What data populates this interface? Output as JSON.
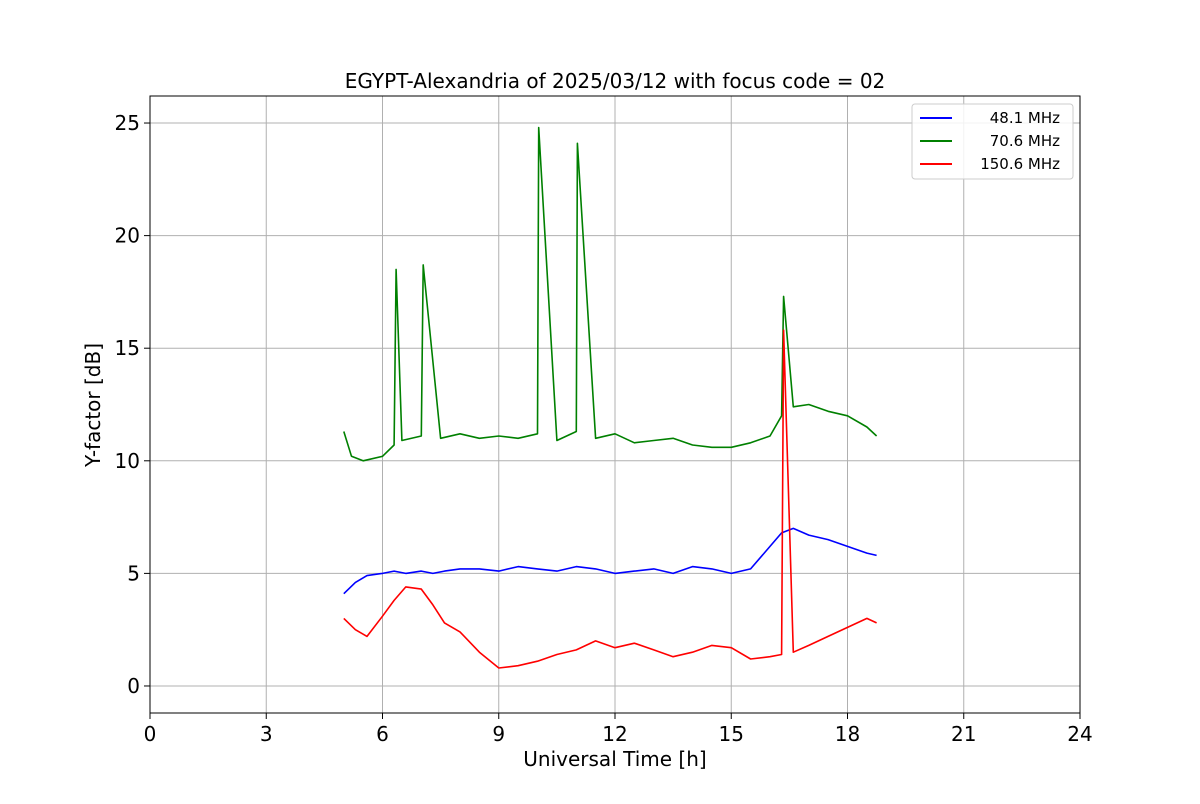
{
  "chart_data": {
    "type": "line",
    "title": "EGYPT-Alexandria of 2025/03/12 with focus code = 02",
    "xlabel": "Universal Time [h]",
    "ylabel": "Y-factor [dB]",
    "xlim": [
      0,
      24
    ],
    "ylim": [
      -1.2,
      26.2
    ],
    "xticks": [
      0,
      3,
      6,
      9,
      12,
      15,
      18,
      21,
      24
    ],
    "yticks": [
      0,
      5,
      10,
      15,
      20,
      25
    ],
    "grid": true,
    "legend_position": "top-right",
    "series": [
      {
        "name": "48.1 MHz",
        "color": "#0000ff",
        "x": [
          5.0,
          5.3,
          5.6,
          6.0,
          6.3,
          6.6,
          7.0,
          7.3,
          7.6,
          8.0,
          8.5,
          9.0,
          9.5,
          10.0,
          10.5,
          11.0,
          11.5,
          12.0,
          12.5,
          13.0,
          13.5,
          14.0,
          14.5,
          15.0,
          15.5,
          16.0,
          16.3,
          16.6,
          17.0,
          17.5,
          18.0,
          18.5,
          18.75
        ],
        "y": [
          4.1,
          4.6,
          4.9,
          5.0,
          5.1,
          5.0,
          5.1,
          5.0,
          5.1,
          5.2,
          5.2,
          5.1,
          5.3,
          5.2,
          5.1,
          5.3,
          5.2,
          5.0,
          5.1,
          5.2,
          5.0,
          5.3,
          5.2,
          5.0,
          5.2,
          6.2,
          6.8,
          7.0,
          6.7,
          6.5,
          6.2,
          5.9,
          5.8
        ]
      },
      {
        "name": "70.6 MHz",
        "color": "#008000",
        "x": [
          5.0,
          5.2,
          5.5,
          6.0,
          6.3,
          6.35,
          6.5,
          7.0,
          7.05,
          7.5,
          8.0,
          8.5,
          9.0,
          9.5,
          10.0,
          10.03,
          10.5,
          11.0,
          11.03,
          11.5,
          12.0,
          12.5,
          13.0,
          13.5,
          14.0,
          14.5,
          15.0,
          15.5,
          16.0,
          16.3,
          16.35,
          16.6,
          17.0,
          17.5,
          18.0,
          18.5,
          18.75
        ],
        "y": [
          11.3,
          10.2,
          10.0,
          10.2,
          10.7,
          18.5,
          10.9,
          11.1,
          18.7,
          11.0,
          11.2,
          11.0,
          11.1,
          11.0,
          11.2,
          24.8,
          10.9,
          11.3,
          24.1,
          11.0,
          11.2,
          10.8,
          10.9,
          11.0,
          10.7,
          10.6,
          10.6,
          10.8,
          11.1,
          12.0,
          17.3,
          12.4,
          12.5,
          12.2,
          12.0,
          11.5,
          11.1
        ]
      },
      {
        "name": "150.6 MHz",
        "color": "#ff0000",
        "x": [
          5.0,
          5.3,
          5.6,
          6.0,
          6.3,
          6.6,
          7.0,
          7.3,
          7.6,
          8.0,
          8.5,
          9.0,
          9.5,
          10.0,
          10.5,
          11.0,
          11.5,
          12.0,
          12.5,
          13.0,
          13.5,
          14.0,
          14.5,
          15.0,
          15.5,
          16.0,
          16.3,
          16.35,
          16.6,
          17.0,
          17.5,
          18.0,
          18.5,
          18.75
        ],
        "y": [
          3.0,
          2.5,
          2.2,
          3.1,
          3.8,
          4.4,
          4.3,
          3.6,
          2.8,
          2.4,
          1.5,
          0.8,
          0.9,
          1.1,
          1.4,
          1.6,
          2.0,
          1.7,
          1.9,
          1.6,
          1.3,
          1.5,
          1.8,
          1.7,
          1.2,
          1.3,
          1.4,
          15.8,
          1.5,
          1.8,
          2.2,
          2.6,
          3.0,
          2.8
        ]
      }
    ]
  }
}
